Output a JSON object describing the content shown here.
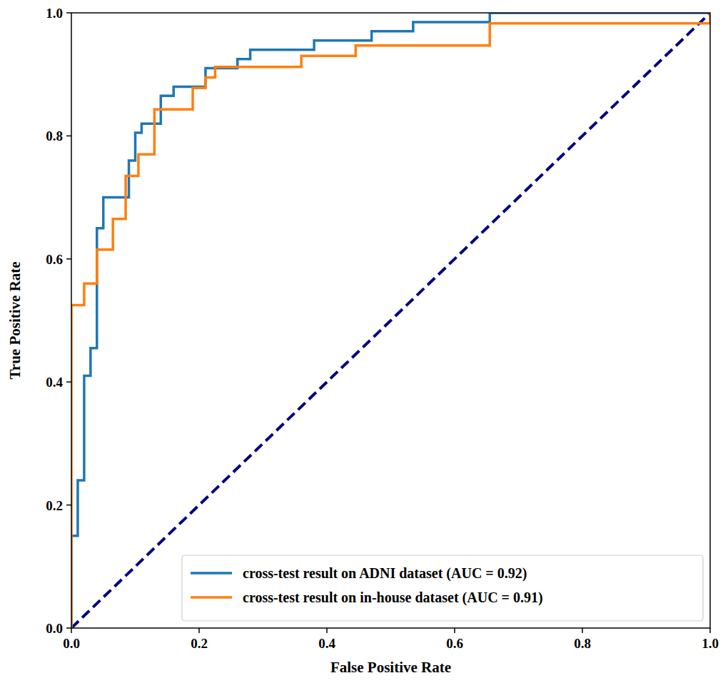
{
  "chart_data": {
    "type": "line",
    "x_label": "False Positive Rate",
    "y_label": "True Positive Rate",
    "xlim": [
      0,
      1
    ],
    "ylim": [
      0,
      1
    ],
    "xticks": [
      {
        "value": 0,
        "label": "0.0"
      },
      0.2,
      0.4,
      0.6,
      0.8,
      {
        "value": 1,
        "label": "1.0"
      }
    ],
    "yticks": [
      {
        "value": 0,
        "label": "0.0"
      },
      0.2,
      0.4,
      0.6,
      0.8,
      {
        "value": 1,
        "label": "1.0"
      }
    ],
    "grid": false,
    "legend": "lower right",
    "series": [
      {
        "name": "cross-test result on ADNI dataset (AUC = 0.92)",
        "color": "#1f77b4",
        "line_style": "solid",
        "x": [
          0,
          0,
          0.01,
          0.01,
          0.02,
          0.02,
          0.03,
          0.03,
          0.04,
          0.04,
          0.05,
          0.05,
          0.09,
          0.09,
          0.1,
          0.1,
          0.11,
          0.11,
          0.14,
          0.14,
          0.16,
          0.16,
          0.21,
          0.21,
          0.26,
          0.26,
          0.28,
          0.28,
          0.38,
          0.38,
          0.47,
          0.47,
          0.535,
          0.535,
          0.655,
          0.655,
          1
        ],
        "values": [
          0,
          0.15,
          0.15,
          0.24,
          0.24,
          0.41,
          0.41,
          0.455,
          0.455,
          0.65,
          0.65,
          0.7,
          0.7,
          0.76,
          0.76,
          0.805,
          0.805,
          0.82,
          0.82,
          0.865,
          0.865,
          0.88,
          0.88,
          0.91,
          0.91,
          0.925,
          0.925,
          0.94,
          0.94,
          0.955,
          0.955,
          0.97,
          0.97,
          0.985,
          0.985,
          1,
          1
        ]
      },
      {
        "name": "cross-test result on in-house dataset (AUC = 0.91)",
        "color": "#ff7f0e",
        "line_style": "solid",
        "x": [
          0,
          0,
          0.02,
          0.02,
          0.04,
          0.04,
          0.065,
          0.065,
          0.085,
          0.085,
          0.105,
          0.105,
          0.13,
          0.13,
          0.19,
          0.19,
          0.21,
          0.21,
          0.225,
          0.225,
          0.36,
          0.36,
          0.445,
          0.445,
          0.655,
          0.655,
          1,
          1
        ],
        "values": [
          0,
          0.525,
          0.525,
          0.56,
          0.56,
          0.615,
          0.615,
          0.665,
          0.665,
          0.735,
          0.735,
          0.77,
          0.77,
          0.843,
          0.843,
          0.878,
          0.878,
          0.895,
          0.895,
          0.912,
          0.912,
          0.93,
          0.93,
          0.947,
          0.947,
          0.983,
          0.983,
          1
        ]
      },
      {
        "color": "#000080",
        "line_style": "dashed",
        "x": [
          0,
          1
        ],
        "values": [
          0,
          1
        ]
      }
    ]
  }
}
